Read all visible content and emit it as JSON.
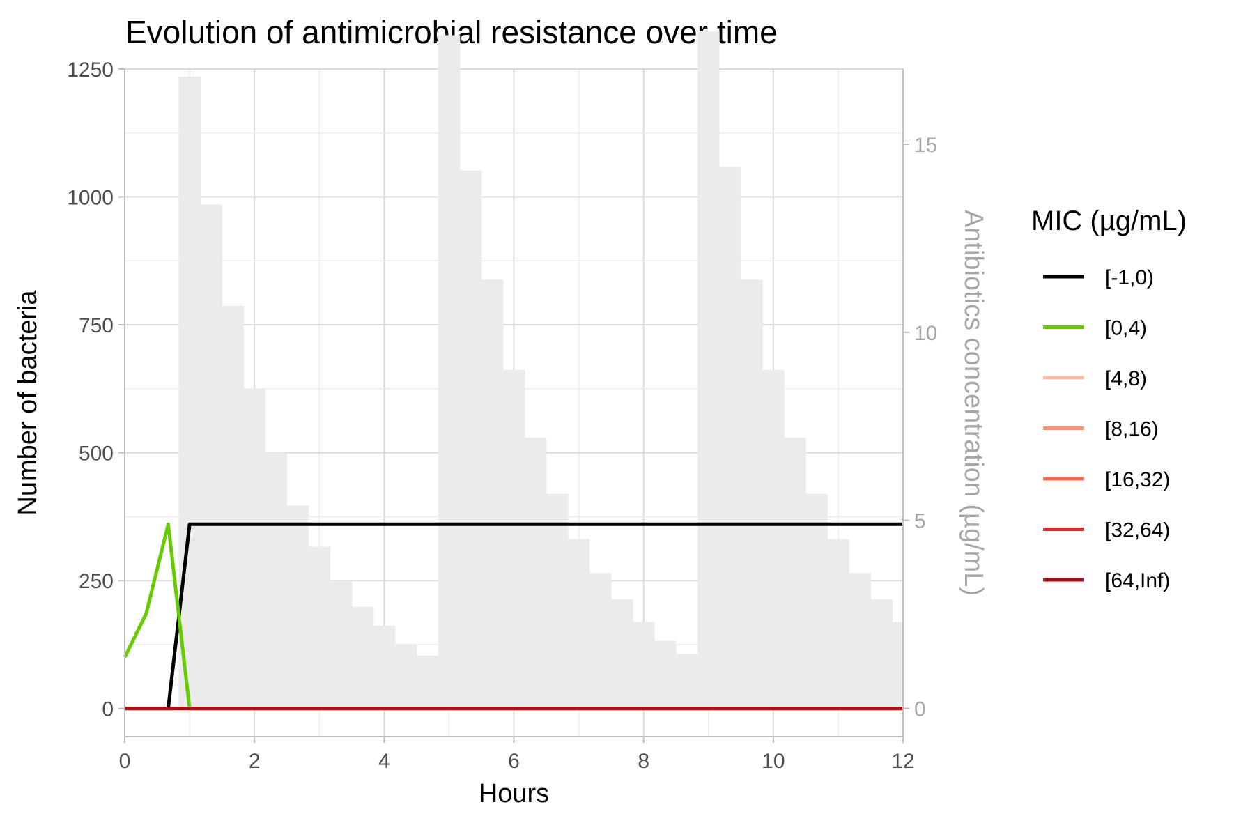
{
  "chart_data": {
    "type": "line",
    "title": "Evolution of antimicrobial resistance over time",
    "xlabel": "Hours",
    "ylabel": "Number of bacteria",
    "y2label": "Antibiotics concentration (µg/mL)",
    "xlim": [
      0,
      12
    ],
    "ylim": [
      -55,
      1250
    ],
    "y2lim": [
      -0.75,
      17
    ],
    "x_ticks": [
      0,
      2,
      4,
      6,
      8,
      10,
      12
    ],
    "y_ticks": [
      0,
      250,
      500,
      750,
      1000,
      1250
    ],
    "y2_ticks": [
      0,
      5,
      10,
      15
    ],
    "grid": true,
    "legend_position": "right",
    "legend_title": "MIC (µg/mL)",
    "series": [
      {
        "name": "[-1,0)",
        "color": "#000000",
        "x": [
          0,
          0.33,
          0.67,
          1.0,
          1.33,
          2,
          4,
          6,
          8,
          10,
          12
        ],
        "y": [
          0,
          0,
          0,
          360,
          360,
          360,
          360,
          360,
          360,
          360,
          360
        ]
      },
      {
        "name": "[0,4)",
        "color": "#66cc00",
        "x": [
          0,
          0.33,
          0.67,
          1.0,
          1.33,
          2,
          4,
          6,
          8,
          10,
          12
        ],
        "y": [
          100,
          185,
          360,
          0,
          0,
          0,
          0,
          0,
          0,
          0,
          0
        ]
      },
      {
        "name": "[4,8)",
        "color": "#fcbba1",
        "x": [
          0,
          12
        ],
        "y": [
          0,
          0
        ]
      },
      {
        "name": "[8,16)",
        "color": "#fc9272",
        "x": [
          0,
          12
        ],
        "y": [
          0,
          0
        ]
      },
      {
        "name": "[16,32)",
        "color": "#fb6a4a",
        "x": [
          0,
          12
        ],
        "y": [
          0,
          0
        ]
      },
      {
        "name": "[32,64)",
        "color": "#de2d26",
        "x": [
          0,
          12
        ],
        "y": [
          0,
          0
        ]
      },
      {
        "name": "[64,Inf)",
        "color": "#a50f15",
        "x": [
          0,
          12
        ],
        "y": [
          0,
          0
        ]
      }
    ],
    "concentration": {
      "color": "#ebebeb",
      "bin_width": 0.333,
      "bin_starts": [
        0.833,
        1.167,
        1.5,
        1.833,
        2.167,
        2.5,
        2.833,
        3.167,
        3.5,
        3.833,
        4.167,
        4.5,
        4.833,
        5.167,
        5.5,
        5.833,
        6.167,
        6.5,
        6.833,
        7.167,
        7.5,
        7.833,
        8.167,
        8.5,
        8.833,
        9.167,
        9.5,
        9.833,
        10.167,
        10.5,
        10.833,
        11.167,
        11.5,
        11.833
      ],
      "values": [
        16.8,
        13.4,
        10.7,
        8.5,
        6.8,
        5.4,
        4.3,
        3.4,
        2.7,
        2.2,
        1.7,
        1.4,
        17.9,
        14.3,
        11.4,
        9.0,
        7.2,
        5.7,
        4.5,
        3.6,
        2.9,
        2.3,
        1.8,
        1.45,
        18.0,
        14.4,
        11.4,
        9.0,
        7.2,
        5.7,
        4.5,
        3.6,
        2.9,
        2.3
      ]
    }
  }
}
